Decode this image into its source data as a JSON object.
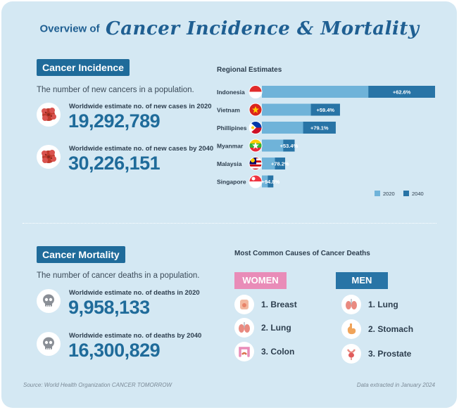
{
  "header": {
    "small": "Overview of",
    "big": "Cancer Incidence & Mortality"
  },
  "incidence": {
    "tag": "Cancer Incidence",
    "desc": "The number of new cancers in a population.",
    "stats": [
      {
        "label": "Worldwide estimate no. of new cases in 2020",
        "value": "19,292,789"
      },
      {
        "label": "Worldwide estimate no. of new cases by 2040",
        "value": "30,226,151"
      }
    ]
  },
  "mortality": {
    "tag": "Cancer Mortality",
    "desc": "The number of cancer deaths in a population.",
    "stats": [
      {
        "label": "Worldwide estimate no. of deaths in 2020",
        "value": "9,958,133"
      },
      {
        "label": "Worldwide estimate no. of deaths by 2040",
        "value": "16,300,829"
      }
    ]
  },
  "chart_data": {
    "type": "bar",
    "title": "Regional Estimates",
    "categories": [
      "Indonesia",
      "Vietnam",
      "Phillipines",
      "Myanmar",
      "Malaysia",
      "Singapore"
    ],
    "series": [
      {
        "name": "2020",
        "values": [
          396914,
          182563,
          153751,
          79608,
          48639,
          21940
        ]
      },
      {
        "name": "2040",
        "values": [
          645400,
          291100,
          275300,
          122100,
          86700,
          42700
        ]
      }
    ],
    "data_labels": [
      "+62.6%",
      "+59.4%",
      "+79.1%",
      "+53.4%",
      "+78.2%",
      "+94.8%"
    ],
    "legend_position": "bottom-right",
    "orientation": "horizontal",
    "stacked_overlay": true,
    "colors": {
      "2020": "#6fb3d9",
      "2040": "#2874a6"
    }
  },
  "causes": {
    "title": "Most Common Causes of Cancer Deaths",
    "women": {
      "label": "WOMEN",
      "color": "#e98cb8",
      "items": [
        {
          "text": "1. Breast",
          "icon": "breast-icon"
        },
        {
          "text": "2. Lung",
          "icon": "lung-icon"
        },
        {
          "text": "3. Colon",
          "icon": "colon-icon"
        }
      ]
    },
    "men": {
      "label": "MEN",
      "color": "#2874a6",
      "items": [
        {
          "text": "1. Lung",
          "icon": "lung-icon"
        },
        {
          "text": "2. Stomach",
          "icon": "stomach-icon"
        },
        {
          "text": "3. Prostate",
          "icon": "prostate-icon"
        }
      ]
    }
  },
  "footer": {
    "source": "Source: World Health Organization CANCER TOMORROW",
    "extracted": "Data extracted in January 2024"
  }
}
